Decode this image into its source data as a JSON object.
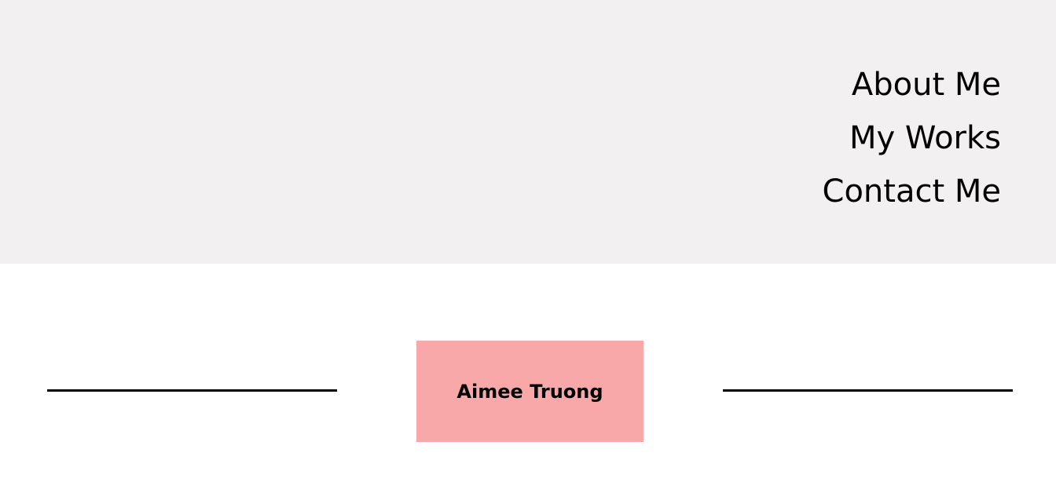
{
  "colors": {
    "header_background": "#f2f0f1",
    "page_background": "#ffffff",
    "name_box_background": "#f8a8a8",
    "text": "#000000",
    "rule": "#000000"
  },
  "nav": {
    "items": [
      {
        "label": "About Me"
      },
      {
        "label": "My Works"
      },
      {
        "label": "Contact Me"
      }
    ]
  },
  "hero": {
    "name": "Aimee Truong"
  }
}
